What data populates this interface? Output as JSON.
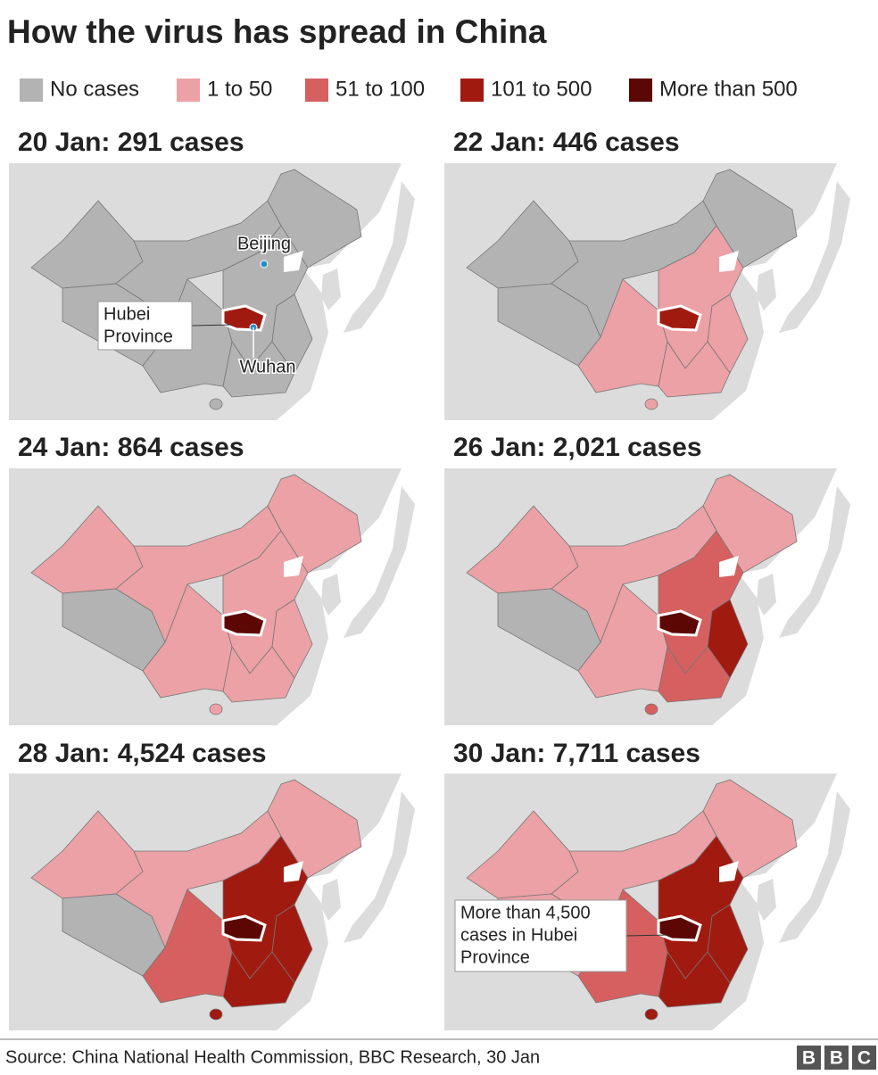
{
  "title": "How the virus has spread in China",
  "legend": [
    {
      "label": "No cases",
      "color": "#b3b3b3"
    },
    {
      "label": "1 to 50",
      "color": "#eba1a5"
    },
    {
      "label": "51 to 100",
      "color": "#d6605f"
    },
    {
      "label": "101 to 500",
      "color": "#a11a10"
    },
    {
      "label": "More than 500",
      "color": "#5c0704"
    }
  ],
  "panels": [
    {
      "title": "20 Jan: 291 cases",
      "labels": [
        "Beijing",
        "Wuhan"
      ],
      "callout": [
        "Hubei",
        "Province"
      ]
    },
    {
      "title": "22 Jan: 446 cases"
    },
    {
      "title": "24 Jan: 864 cases"
    },
    {
      "title": "26 Jan: 2,021 cases"
    },
    {
      "title": "28 Jan: 4,524 cases"
    },
    {
      "title": "30 Jan: 7,711 cases",
      "callout": [
        "More than 4,500",
        "cases in Hubei",
        "Province"
      ]
    }
  ],
  "source": "Source: China National Health Commission, BBC Research, 30 Jan",
  "logo": [
    "B",
    "B",
    "C"
  ]
}
